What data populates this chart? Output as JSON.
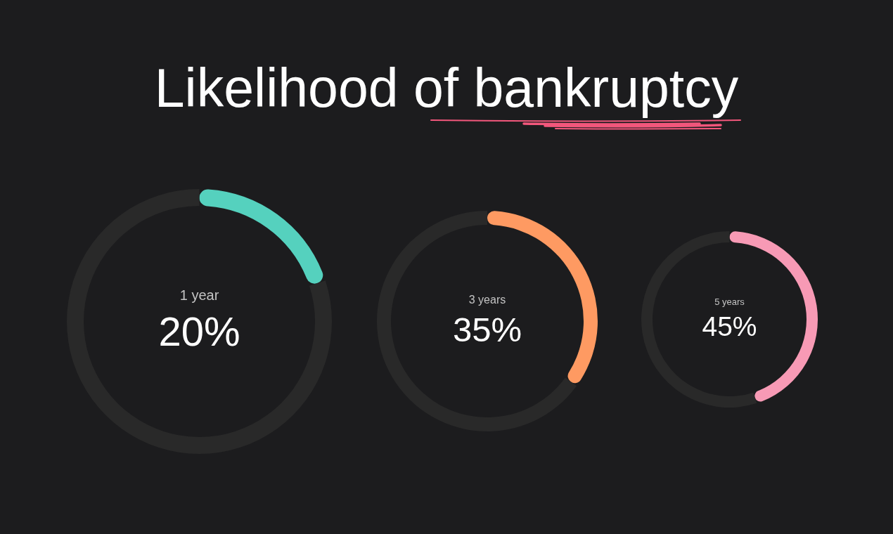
{
  "chart_data": [
    {
      "type": "donut",
      "title": "Likelihood of bankruptcy",
      "categories": [
        "1 year",
        null
      ],
      "values": [
        20,
        80
      ],
      "colors": [
        "#55d1be",
        "#292929"
      ],
      "value_labels": [
        "20%",
        null
      ]
    },
    {
      "type": "donut",
      "categories": [
        "3 years",
        null
      ],
      "values": [
        35,
        65
      ],
      "colors": [
        "#fe9a62",
        "#292929"
      ],
      "value_labels": [
        "35%",
        null
      ]
    },
    {
      "type": "donut",
      "categories": [
        "5 years",
        null
      ],
      "values": [
        45,
        55
      ],
      "colors": [
        "#f79ab5",
        "#292929"
      ],
      "value_labels": [
        "45%",
        null
      ]
    }
  ]
}
